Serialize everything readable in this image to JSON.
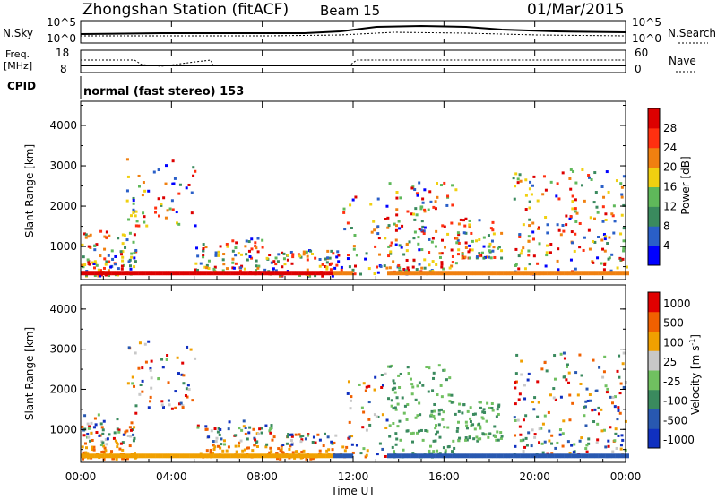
{
  "title": {
    "station": "Zhongshan Station (fitACF)",
    "beam": "Beam 15",
    "date": "01/Mar/2015"
  },
  "top_panels": {
    "nsky_label": "N.Sky",
    "nsky_ticks": [
      "10^5",
      "10^0"
    ],
    "nsearch_label": "N.Search",
    "nsearch_ticks": [
      "10^5",
      "10^0"
    ],
    "freq_label_1": "Freq.",
    "freq_label_2": "[MHz]",
    "freq_ticks": [
      "18",
      "8"
    ],
    "nave_label": "Nave",
    "nave_ticks": [
      "60",
      "0"
    ],
    "cpid_label": "CPID",
    "cpid_text": "normal (fast stereo) 153"
  },
  "chart_data": [
    {
      "type": "heatmap",
      "name": "power",
      "xlabel": "Time UT",
      "ylabel": "Slant Range [km]",
      "xlim_hours": [
        0,
        24
      ],
      "ylim_km": [
        180,
        4600
      ],
      "yticks": [
        "1000",
        "2000",
        "3000",
        "4000"
      ],
      "colorbar_label": "Power [dB]",
      "colorbar_ticks": [
        "4",
        "8",
        "12",
        "16",
        "20",
        "24",
        "28"
      ],
      "colorbar_colors": [
        "#0000ff",
        "#2a5fc8",
        "#3a8a5e",
        "#5fb85a",
        "#f0d010",
        "#f08010",
        "#ff3010",
        "#dd0000"
      ]
    },
    {
      "type": "heatmap",
      "name": "velocity",
      "xlabel": "Time UT",
      "ylabel": "Slant Range [km]",
      "xlim_hours": [
        0,
        24
      ],
      "ylim_km": [
        180,
        4600
      ],
      "yticks": [
        "1000",
        "2000",
        "3000",
        "4000"
      ],
      "colorbar_label": "Velocity [m s",
      "colorbar_label_sup": "-1",
      "colorbar_label_end": "]",
      "colorbar_ticks": [
        "1000",
        "500",
        "100",
        "25",
        "-25",
        "-100",
        "-500",
        "-1000"
      ],
      "colorbar_colors": [
        "#1030c0",
        "#2858b0",
        "#3a8a5e",
        "#70c060",
        "#c8c8c8",
        "#f0a000",
        "#f06000",
        "#e00000"
      ]
    }
  ],
  "xticks": [
    "00:00",
    "04:00",
    "08:00",
    "12:00",
    "16:00",
    "20:00",
    "00:00"
  ],
  "xlabel": "Time UT"
}
